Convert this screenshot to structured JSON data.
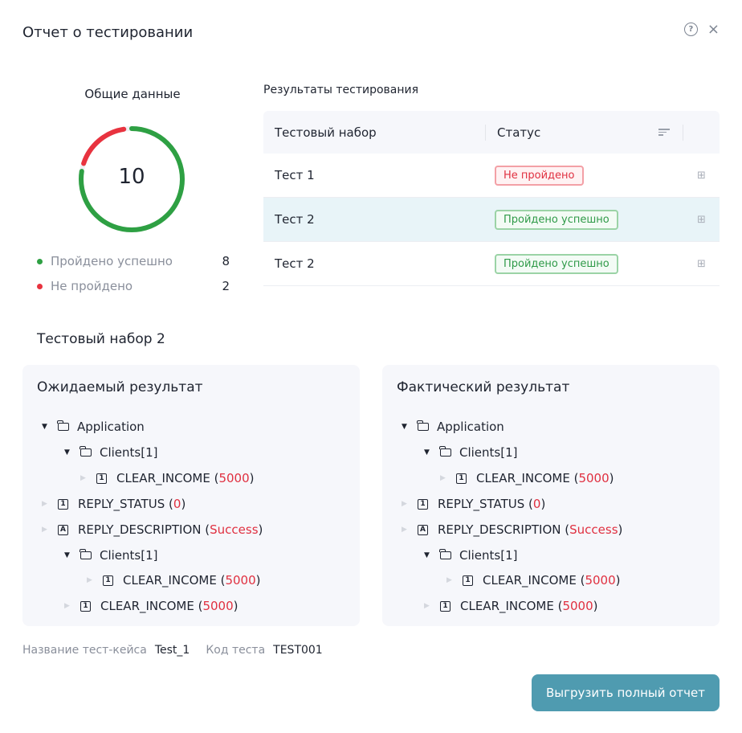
{
  "window": {
    "title": "Отчет о тестировании"
  },
  "summary": {
    "title": "Общие данные",
    "total": "10",
    "passed_label": "Пройдено успешно",
    "passed_count": "8",
    "failed_label": "Не пройдено",
    "failed_count": "2",
    "passed_value": 8,
    "failed_value": 2,
    "colors": {
      "passed": "#2ea043",
      "failed": "#e8333f"
    }
  },
  "results": {
    "title": "Результаты тестирования",
    "col_set": "Тестовый набор",
    "col_status": "Статус",
    "rows": [
      {
        "name": "Тест 1",
        "status": "Не пройдено"
      },
      {
        "name": "Тест 2",
        "status": "Пройдено успешно"
      },
      {
        "name": "Тест 2",
        "status": "Пройдено успешно"
      }
    ]
  },
  "set_title": "Тестовый набор 2",
  "expected": {
    "title": "Ожидаемый результат",
    "nodes": [
      {
        "label": "Application",
        "icon": "folder"
      },
      {
        "label": "Clients[1]",
        "icon": "folder"
      },
      {
        "label": "CLEAR_INCOME",
        "value": "5000",
        "icon": "1"
      },
      {
        "label": "REPLY_STATUS",
        "value": "0",
        "icon": "1"
      },
      {
        "label": "REPLY_DESCRIPTION",
        "value": "Success",
        "icon": "A"
      },
      {
        "label": "Clients[1]",
        "icon": "folder"
      },
      {
        "label": "CLEAR_INCOME",
        "value": "5000",
        "icon": "1"
      },
      {
        "label": "CLEAR_INCOME",
        "value": "5000",
        "icon": "1"
      }
    ]
  },
  "actual": {
    "title": "Фактический результат",
    "nodes": [
      {
        "label": "Application",
        "icon": "folder"
      },
      {
        "label": "Clients[1]",
        "icon": "folder"
      },
      {
        "label": "CLEAR_INCOME",
        "value": "5000",
        "icon": "1"
      },
      {
        "label": "REPLY_STATUS",
        "value": "0",
        "icon": "1"
      },
      {
        "label": "REPLY_DESCRIPTION",
        "value": "Success",
        "icon": "A"
      },
      {
        "label": "Clients[1]",
        "icon": "folder"
      },
      {
        "label": "CLEAR_INCOME",
        "value": "5000",
        "icon": "1"
      },
      {
        "label": "CLEAR_INCOME",
        "value": "5000",
        "icon": "1"
      }
    ]
  },
  "meta": {
    "case_label": "Название тест-кейса",
    "case_value": "Test_1",
    "code_label": "Код теста",
    "code_value": "TEST001"
  },
  "export_button": "Выгрузить полный отчет"
}
